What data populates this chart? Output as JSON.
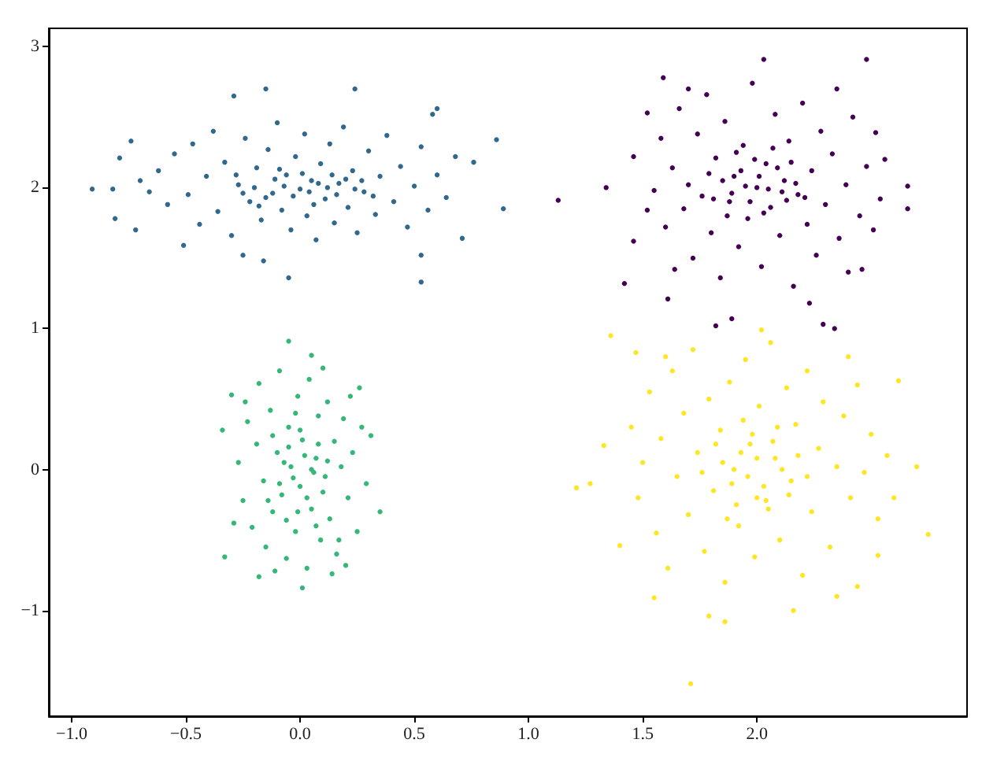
{
  "chart_data": {
    "type": "scatter",
    "marker": "circle",
    "xlim": [
      -1.1,
      2.92
    ],
    "ylim": [
      -1.75,
      3.13
    ],
    "xticks": [
      {
        "value": -1,
        "label": "−1.0"
      },
      {
        "value": -0.5,
        "label": "−0.5"
      },
      {
        "value": 0,
        "label": "0.0"
      },
      {
        "value": 0.5,
        "label": "0.5"
      },
      {
        "value": 1,
        "label": "1.0"
      },
      {
        "value": 1.5,
        "label": "1.5"
      },
      {
        "value": 2,
        "label": "2.0"
      }
    ],
    "yticks": [
      {
        "value": -1,
        "label": "−1"
      },
      0,
      1,
      2,
      3
    ],
    "series": [
      {
        "color": "#31688e",
        "x": [
          -0.91,
          -0.81,
          -0.72,
          -0.74,
          -0.79,
          -0.82,
          0.89,
          0.86,
          -0.15,
          0.24,
          -0.29,
          0.53,
          -0.05,
          0.6,
          0.58,
          0.76,
          0.71,
          0.53,
          -0.51,
          -0.25,
          -0.16,
          -0.62,
          -0.58,
          -0.55,
          -0.49,
          -0.47,
          -0.44,
          -0.41,
          -0.38,
          -0.36,
          -0.33,
          -0.3,
          -0.27,
          -0.24,
          -0.22,
          -0.19,
          -0.17,
          -0.14,
          -0.12,
          -0.1,
          -0.08,
          -0.06,
          -0.04,
          -0.02,
          0.0,
          0.02,
          0.03,
          0.05,
          0.07,
          0.09,
          0.11,
          0.13,
          0.15,
          0.17,
          0.19,
          0.21,
          0.23,
          0.25,
          0.28,
          0.3,
          0.33,
          0.35,
          0.38,
          0.41,
          0.44,
          0.47,
          0.5,
          0.53,
          0.56,
          0.6,
          0.64,
          0.68,
          -0.66,
          -0.7,
          -0.2,
          -0.15,
          -0.11,
          -0.07,
          -0.03,
          0.01,
          0.04,
          0.08,
          0.12,
          0.16,
          0.2,
          0.24,
          -0.25,
          -0.28,
          0.27,
          -0.09,
          0.06,
          0.14,
          -0.18,
          0.32
        ],
        "values": [
          1.99,
          1.78,
          1.7,
          2.33,
          2.21,
          1.99,
          1.85,
          2.34,
          2.7,
          2.7,
          2.65,
          1.33,
          1.36,
          2.56,
          2.52,
          2.18,
          1.64,
          1.52,
          1.59,
          1.52,
          1.48,
          2.12,
          1.88,
          2.24,
          1.95,
          2.31,
          1.74,
          2.08,
          2.4,
          1.83,
          2.18,
          1.66,
          2.02,
          2.35,
          1.9,
          2.14,
          1.77,
          2.27,
          1.96,
          2.46,
          1.84,
          2.09,
          1.7,
          2.22,
          1.99,
          2.38,
          1.8,
          2.05,
          1.63,
          2.17,
          1.92,
          2.31,
          1.75,
          2.03,
          2.43,
          1.86,
          2.12,
          1.68,
          1.97,
          2.26,
          1.81,
          2.08,
          2.37,
          1.9,
          2.15,
          1.72,
          2.01,
          2.29,
          1.84,
          2.09,
          1.93,
          2.22,
          1.97,
          2.05,
          2.0,
          1.93,
          2.06,
          2.01,
          1.94,
          2.1,
          1.97,
          2.03,
          2.0,
          1.95,
          2.06,
          1.99,
          1.96,
          2.09,
          2.05,
          2.13,
          1.88,
          2.09,
          1.87,
          1.94
        ]
      },
      {
        "color": "#440154",
        "x": [
          1.13,
          1.34,
          2.03,
          2.48,
          1.59,
          2.52,
          2.66,
          2.66,
          2.54,
          1.42,
          1.61,
          1.82,
          1.89,
          2.29,
          2.34,
          2.46,
          1.46,
          1.52,
          1.46,
          2.23,
          1.55,
          1.58,
          1.6,
          1.63,
          1.66,
          1.68,
          1.7,
          1.72,
          1.74,
          1.76,
          1.78,
          1.8,
          1.82,
          1.84,
          1.86,
          1.88,
          1.9,
          1.92,
          1.94,
          1.96,
          1.98,
          2.0,
          2.02,
          2.04,
          2.06,
          2.08,
          2.1,
          2.12,
          2.14,
          2.16,
          2.18,
          2.2,
          2.22,
          2.24,
          2.26,
          2.28,
          2.3,
          2.33,
          2.36,
          2.39,
          2.42,
          2.45,
          2.48,
          2.51,
          2.4,
          1.64,
          1.7,
          2.35,
          1.52,
          2.56,
          1.85,
          1.89,
          1.93,
          1.97,
          2.01,
          2.05,
          2.09,
          2.13,
          2.17,
          1.81,
          1.95,
          2.03,
          1.99,
          2.11,
          1.87,
          2.15,
          1.79,
          2.07,
          1.91,
          2.21
        ],
        "values": [
          1.91,
          2.0,
          2.91,
          2.91,
          2.78,
          2.39,
          2.01,
          1.85,
          1.92,
          1.32,
          1.21,
          1.02,
          1.07,
          1.03,
          1.0,
          1.42,
          2.22,
          2.53,
          1.62,
          1.18,
          1.98,
          2.35,
          1.72,
          2.14,
          2.56,
          1.85,
          2.02,
          1.5,
          2.38,
          1.94,
          2.66,
          1.68,
          2.21,
          1.36,
          2.47,
          1.9,
          2.08,
          1.58,
          2.3,
          1.78,
          2.74,
          2.0,
          1.44,
          2.17,
          1.86,
          2.52,
          1.66,
          2.05,
          2.33,
          1.3,
          1.95,
          2.6,
          1.74,
          2.12,
          1.52,
          2.4,
          1.88,
          2.24,
          1.64,
          2.02,
          2.5,
          1.8,
          2.15,
          1.7,
          1.4,
          1.42,
          2.7,
          2.7,
          1.84,
          2.2,
          2.05,
          1.96,
          2.12,
          1.9,
          2.08,
          1.99,
          2.14,
          1.91,
          2.03,
          1.92,
          2.01,
          1.82,
          2.2,
          1.97,
          1.8,
          2.18,
          2.1,
          2.28,
          2.25,
          1.93
        ]
      },
      {
        "color": "#35b779",
        "x": [
          -0.05,
          0.05,
          0.01,
          -0.18,
          -0.34,
          -0.33,
          0.35,
          0.31,
          -0.3,
          0.26,
          0.2,
          0.14,
          -0.27,
          -0.25,
          -0.23,
          -0.21,
          -0.19,
          -0.18,
          -0.16,
          -0.15,
          -0.13,
          -0.12,
          -0.1,
          -0.09,
          -0.08,
          -0.06,
          -0.05,
          -0.04,
          -0.02,
          -0.01,
          0.0,
          0.01,
          0.03,
          0.04,
          0.05,
          0.07,
          0.08,
          0.09,
          0.11,
          0.12,
          0.13,
          0.15,
          0.16,
          0.18,
          0.19,
          0.21,
          0.23,
          0.25,
          0.27,
          0.29,
          -0.29,
          -0.24,
          0.22,
          -0.11,
          0.1,
          0.17,
          -0.07,
          -0.03,
          0.02,
          0.06,
          -0.05,
          0.03,
          -0.09,
          0.08,
          -0.01,
          0.0,
          0.1,
          -0.12,
          0.05,
          -0.02,
          0.12,
          -0.14,
          0.07,
          -0.06
        ],
        "values": [
          0.91,
          0.81,
          -0.84,
          -0.76,
          0.28,
          -0.62,
          -0.3,
          0.24,
          0.53,
          0.58,
          -0.68,
          -0.74,
          0.05,
          -0.22,
          0.34,
          -0.41,
          0.18,
          0.61,
          -0.08,
          -0.55,
          0.42,
          -0.3,
          0.12,
          0.7,
          -0.18,
          -0.63,
          0.3,
          0.02,
          -0.44,
          0.52,
          -0.12,
          0.21,
          -0.7,
          0.64,
          -0.28,
          0.08,
          0.38,
          -0.5,
          -0.05,
          0.48,
          -0.35,
          0.2,
          -0.6,
          0.02,
          0.36,
          -0.2,
          0.12,
          -0.44,
          0.3,
          -0.1,
          -0.38,
          0.48,
          0.52,
          -0.72,
          0.72,
          -0.5,
          0.05,
          -0.06,
          0.1,
          -0.02,
          0.16,
          -0.2,
          -0.1,
          0.18,
          -0.3,
          0.28,
          -0.16,
          0.24,
          0.0,
          0.4,
          0.06,
          -0.22,
          -0.4,
          -0.36
        ]
      },
      {
        "color": "#fde725",
        "x": [
          2.02,
          1.36,
          1.47,
          1.21,
          1.27,
          1.33,
          2.75,
          2.7,
          2.62,
          1.79,
          1.86,
          2.16,
          1.71,
          1.55,
          2.44,
          1.4,
          2.53,
          1.45,
          1.48,
          1.5,
          1.53,
          1.56,
          1.58,
          1.61,
          1.63,
          1.65,
          1.68,
          1.7,
          1.72,
          1.74,
          1.77,
          1.79,
          1.81,
          1.84,
          1.86,
          1.88,
          1.9,
          1.92,
          1.95,
          1.97,
          1.99,
          2.01,
          2.04,
          2.06,
          2.08,
          2.1,
          2.13,
          2.15,
          2.17,
          2.2,
          2.22,
          2.24,
          2.27,
          2.29,
          2.32,
          2.35,
          2.38,
          2.41,
          2.44,
          2.47,
          2.5,
          2.53,
          2.57,
          2.6,
          2.4,
          1.6,
          2.35,
          1.85,
          1.89,
          1.93,
          1.96,
          2.0,
          2.03,
          2.07,
          2.11,
          2.14,
          1.82,
          1.98,
          2.05,
          1.91,
          2.18,
          1.76,
          2.22,
          1.94,
          2.09,
          1.87,
          2.0
        ],
        "values": [
          0.99,
          0.95,
          0.83,
          -0.13,
          -0.1,
          0.17,
          -0.46,
          0.02,
          0.63,
          -1.04,
          -1.08,
          -1.0,
          -1.52,
          -0.91,
          -0.83,
          -0.54,
          -0.61,
          0.3,
          -0.2,
          0.05,
          0.55,
          -0.45,
          0.22,
          -0.7,
          0.7,
          -0.05,
          0.4,
          -0.32,
          0.85,
          0.12,
          -0.58,
          0.5,
          -0.15,
          0.28,
          -0.8,
          0.62,
          0.0,
          -0.4,
          0.78,
          0.18,
          -0.62,
          0.45,
          -0.22,
          0.9,
          0.08,
          -0.5,
          0.58,
          -0.08,
          0.32,
          -0.75,
          0.7,
          -0.3,
          0.15,
          0.48,
          -0.55,
          0.02,
          0.38,
          -0.2,
          0.6,
          -0.02,
          0.25,
          -0.35,
          0.1,
          -0.2,
          0.8,
          0.8,
          -0.9,
          0.05,
          -0.1,
          0.12,
          -0.05,
          0.08,
          -0.12,
          0.2,
          0.0,
          -0.18,
          0.18,
          0.25,
          -0.28,
          -0.25,
          0.1,
          -0.02,
          -0.05,
          0.35,
          0.3,
          -0.35,
          -0.2
        ]
      }
    ]
  }
}
